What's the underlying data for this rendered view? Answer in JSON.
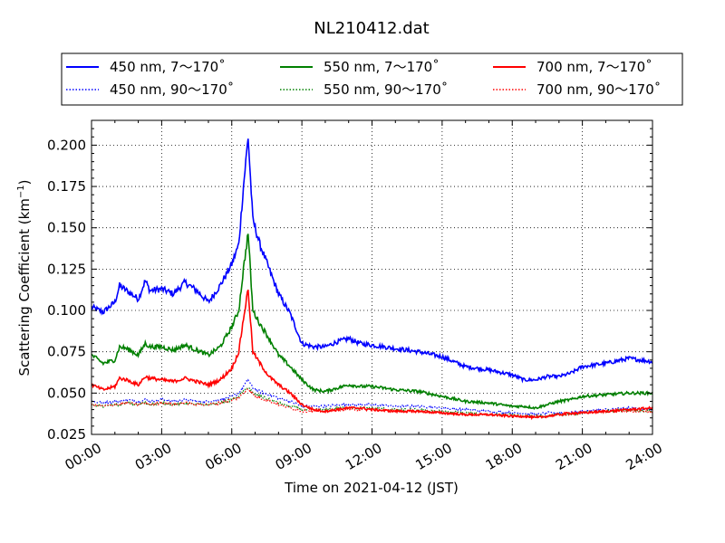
{
  "chart_data": {
    "type": "line",
    "title": "NL210412.dat",
    "xlabel": "Time on 2021-04-12 (JST)",
    "ylabel": "Scattering Coefficient (km",
    "ylabel_sup": "−1",
    "ylabel_close": ")",
    "xlim_hours": [
      0,
      24
    ],
    "ylim": [
      0.025,
      0.215
    ],
    "x_ticks": [
      {
        "hour": 0,
        "label": "00:00"
      },
      {
        "hour": 3,
        "label": "03:00"
      },
      {
        "hour": 6,
        "label": "06:00"
      },
      {
        "hour": 9,
        "label": "09:00"
      },
      {
        "hour": 12,
        "label": "12:00"
      },
      {
        "hour": 15,
        "label": "15:00"
      },
      {
        "hour": 18,
        "label": "18:00"
      },
      {
        "hour": 21,
        "label": "21:00"
      },
      {
        "hour": 24,
        "label": "24:00"
      }
    ],
    "y_ticks": [
      {
        "value": 0.025,
        "label": "0.025"
      },
      {
        "value": 0.05,
        "label": "0.050"
      },
      {
        "value": 0.075,
        "label": "0.075"
      },
      {
        "value": 0.1,
        "label": "0.100"
      },
      {
        "value": 0.125,
        "label": "0.125"
      },
      {
        "value": 0.15,
        "label": "0.150"
      },
      {
        "value": 0.175,
        "label": "0.175"
      },
      {
        "value": 0.2,
        "label": "0.200"
      }
    ],
    "grid": true,
    "legend_position": "top",
    "x": [
      0,
      0.5,
      1,
      1.2,
      1.5,
      2,
      2.3,
      2.5,
      3,
      3.5,
      4,
      4.5,
      5,
      5.5,
      6,
      6.3,
      6.5,
      6.7,
      6.9,
      7.2,
      7.6,
      8,
      8.5,
      9,
      9.5,
      10,
      10.5,
      11,
      11.5,
      12,
      13,
      14,
      15,
      16,
      17,
      18,
      18.5,
      19,
      19.5,
      20,
      20.5,
      21,
      22,
      23,
      24
    ],
    "series": [
      {
        "name": "450 nm, 7～170˚",
        "color": "#0000ff",
        "style": "solid",
        "values": [
          0.102,
          0.099,
          0.105,
          0.115,
          0.112,
          0.107,
          0.118,
          0.112,
          0.113,
          0.11,
          0.117,
          0.112,
          0.105,
          0.115,
          0.128,
          0.14,
          0.175,
          0.205,
          0.155,
          0.14,
          0.125,
          0.11,
          0.098,
          0.08,
          0.078,
          0.078,
          0.081,
          0.083,
          0.08,
          0.079,
          0.077,
          0.075,
          0.072,
          0.066,
          0.064,
          0.061,
          0.058,
          0.058,
          0.06,
          0.06,
          0.062,
          0.066,
          0.068,
          0.071,
          0.069
        ]
      },
      {
        "name": "450 nm, 90～170˚",
        "color": "#0000ff",
        "style": "dotted",
        "values": [
          0.045,
          0.044,
          0.045,
          0.045,
          0.046,
          0.045,
          0.046,
          0.045,
          0.046,
          0.045,
          0.046,
          0.045,
          0.045,
          0.046,
          0.048,
          0.05,
          0.054,
          0.058,
          0.053,
          0.051,
          0.049,
          0.047,
          0.045,
          0.042,
          0.042,
          0.042,
          0.043,
          0.043,
          0.043,
          0.043,
          0.042,
          0.042,
          0.041,
          0.04,
          0.039,
          0.038,
          0.038,
          0.037,
          0.038,
          0.038,
          0.038,
          0.039,
          0.04,
          0.041,
          0.04
        ]
      },
      {
        "name": "550 nm, 7～170˚",
        "color": "#008000",
        "style": "solid",
        "values": [
          0.073,
          0.068,
          0.07,
          0.078,
          0.077,
          0.073,
          0.08,
          0.078,
          0.078,
          0.076,
          0.079,
          0.076,
          0.073,
          0.078,
          0.09,
          0.1,
          0.125,
          0.147,
          0.1,
          0.092,
          0.083,
          0.073,
          0.066,
          0.058,
          0.052,
          0.051,
          0.053,
          0.055,
          0.054,
          0.054,
          0.052,
          0.051,
          0.048,
          0.045,
          0.044,
          0.042,
          0.042,
          0.041,
          0.043,
          0.045,
          0.046,
          0.048,
          0.049,
          0.05,
          0.05
        ]
      },
      {
        "name": "550 nm, 90～170˚",
        "color": "#008000",
        "style": "dotted",
        "values": [
          0.043,
          0.042,
          0.043,
          0.043,
          0.044,
          0.043,
          0.044,
          0.043,
          0.044,
          0.043,
          0.044,
          0.043,
          0.043,
          0.044,
          0.046,
          0.048,
          0.051,
          0.054,
          0.05,
          0.048,
          0.046,
          0.044,
          0.042,
          0.04,
          0.04,
          0.04,
          0.041,
          0.041,
          0.041,
          0.041,
          0.04,
          0.04,
          0.039,
          0.038,
          0.037,
          0.037,
          0.036,
          0.036,
          0.036,
          0.037,
          0.037,
          0.038,
          0.039,
          0.04,
          0.039
        ]
      },
      {
        "name": "700 nm, 7～170˚",
        "color": "#ff0000",
        "style": "solid",
        "values": [
          0.055,
          0.052,
          0.054,
          0.059,
          0.058,
          0.055,
          0.06,
          0.059,
          0.058,
          0.057,
          0.059,
          0.057,
          0.055,
          0.058,
          0.065,
          0.075,
          0.095,
          0.113,
          0.075,
          0.068,
          0.06,
          0.055,
          0.05,
          0.043,
          0.04,
          0.039,
          0.04,
          0.041,
          0.041,
          0.04,
          0.039,
          0.039,
          0.038,
          0.037,
          0.037,
          0.036,
          0.036,
          0.035,
          0.036,
          0.037,
          0.038,
          0.038,
          0.039,
          0.04,
          0.041
        ]
      },
      {
        "name": "700 nm, 90～170˚",
        "color": "#ff0000",
        "style": "dotted",
        "values": [
          0.043,
          0.042,
          0.043,
          0.043,
          0.044,
          0.043,
          0.044,
          0.043,
          0.044,
          0.043,
          0.044,
          0.043,
          0.043,
          0.044,
          0.046,
          0.047,
          0.05,
          0.053,
          0.049,
          0.047,
          0.045,
          0.043,
          0.041,
          0.039,
          0.039,
          0.039,
          0.04,
          0.04,
          0.04,
          0.04,
          0.039,
          0.039,
          0.038,
          0.037,
          0.037,
          0.036,
          0.036,
          0.036,
          0.036,
          0.037,
          0.037,
          0.038,
          0.039,
          0.039,
          0.039
        ]
      }
    ]
  }
}
